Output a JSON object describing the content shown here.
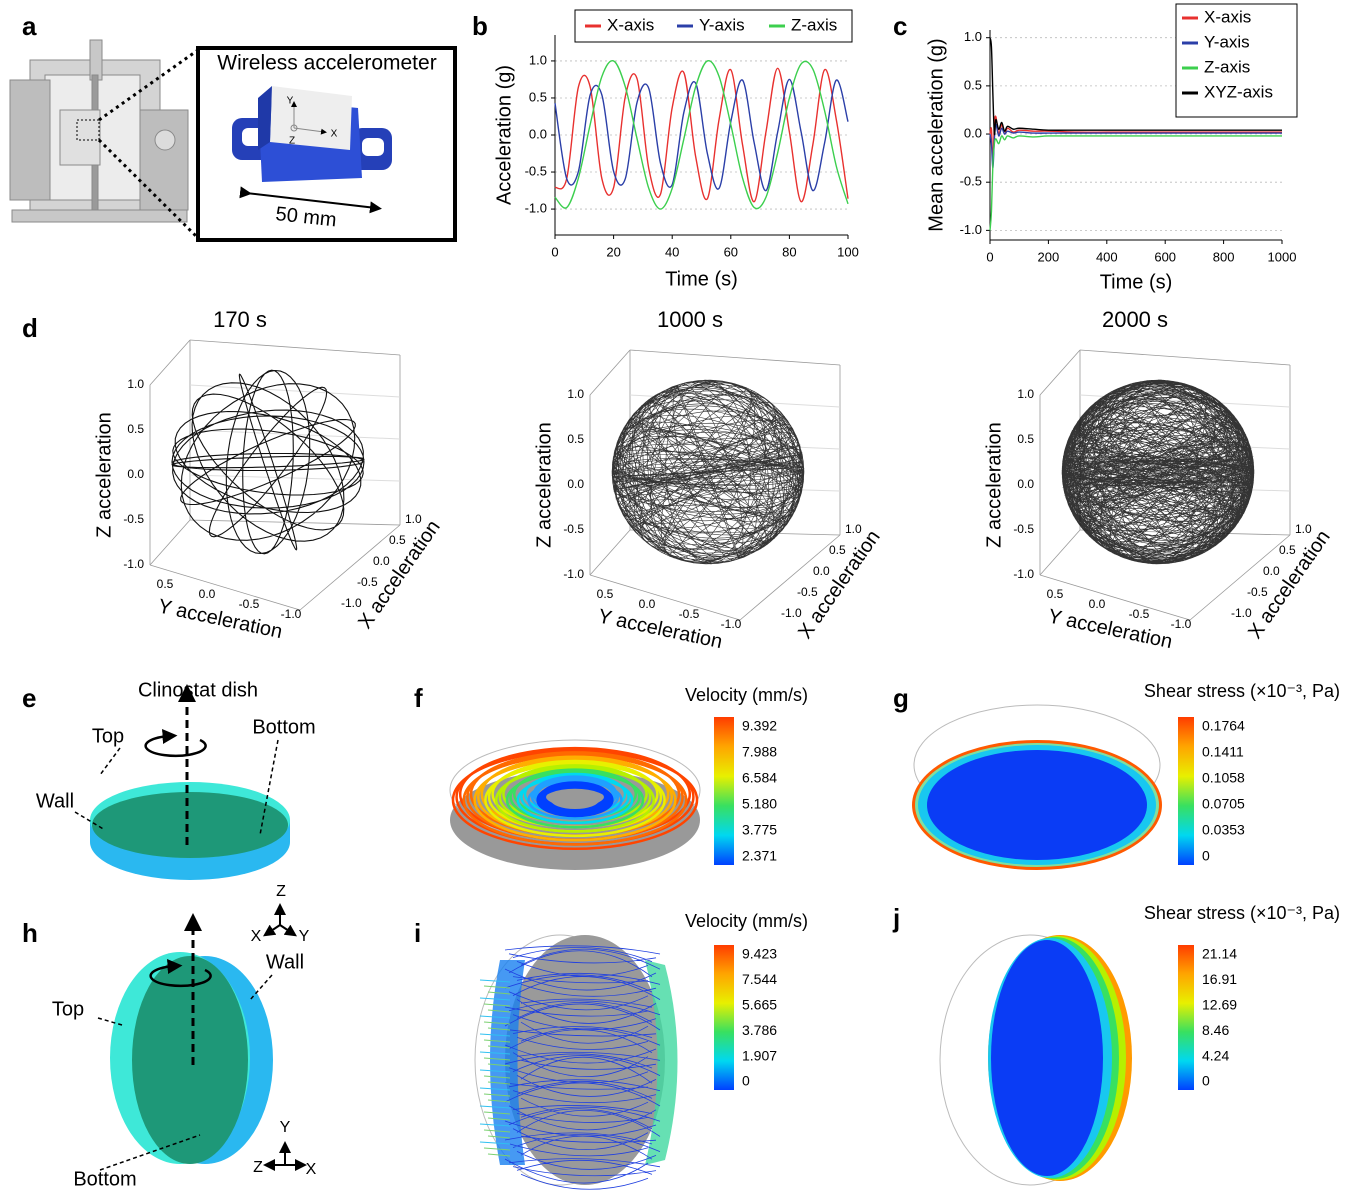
{
  "panels": {
    "a": {
      "label": "a",
      "title": "Wireless accelerometer",
      "scale": "50 mm",
      "axis_y": "Y",
      "axis_x": "X",
      "axis_z": "Z"
    },
    "b": {
      "label": "b"
    },
    "c": {
      "label": "c"
    },
    "d": {
      "label": "d",
      "plots": [
        {
          "title": "170 s"
        },
        {
          "title": "1000 s"
        },
        {
          "title": "2000 s"
        }
      ],
      "z_label": "Z acceleration",
      "y_label": "Y acceleration",
      "x_label": "X acceleration",
      "z_ticks": [
        "1.0",
        "0.5",
        "0.0",
        "-0.5",
        "-1.0"
      ],
      "y_ticks": [
        "0.5",
        "0.0",
        "-0.5",
        "-1.0"
      ],
      "x_ticks": [
        "1.0",
        "0.5",
        "0.0",
        "-0.5",
        "-1.0"
      ]
    },
    "e": {
      "label": "e",
      "title": "Clinostat dish",
      "top": "Top",
      "bottom": "Bottom",
      "wall": "Wall"
    },
    "f": {
      "label": "f",
      "title": "Velocity (mm/s)",
      "ticks": [
        "9.392",
        "7.988",
        "6.584",
        "5.180",
        "3.775",
        "2.371"
      ]
    },
    "g": {
      "label": "g",
      "title": "Shear stress (×10⁻³, Pa)",
      "ticks": [
        "0.1764",
        "0.1411",
        "0.1058",
        "0.0705",
        "0.0353",
        "0"
      ]
    },
    "h": {
      "label": "h",
      "top": "Top",
      "bottom": "Bottom",
      "wall": "Wall",
      "axes_upper": [
        "Z",
        "X",
        "Y"
      ],
      "axes_lower": [
        "Y",
        "Z",
        "X"
      ]
    },
    "i": {
      "label": "i",
      "title": "Velocity (mm/s)",
      "ticks": [
        "9.423",
        "7.544",
        "5.665",
        "3.786",
        "1.907",
        "0"
      ]
    },
    "j": {
      "label": "j",
      "title": "Shear stress (×10⁻³, Pa)",
      "ticks": [
        "21.14",
        "16.91",
        "12.69",
        "8.46",
        "4.24",
        "0"
      ]
    }
  },
  "chart_data": [
    {
      "type": "line",
      "y_label": "Acceleration (g)",
      "x_label": "Time (s)",
      "legend": "top",
      "grid": true,
      "x": [
        0,
        4,
        8,
        12,
        16,
        20,
        24,
        28,
        32,
        36,
        40,
        44,
        48,
        52,
        56,
        60,
        64,
        68,
        72,
        76,
        80,
        84,
        88,
        92,
        96,
        100
      ],
      "series": [
        {
          "name": "X-axis",
          "color": "#e8312f",
          "values": [
            -0.71,
            -0.59,
            0.65,
            0.65,
            -0.59,
            -0.71,
            0.52,
            0.76,
            -0.45,
            -0.8,
            0.37,
            0.84,
            -0.29,
            -0.86,
            0.21,
            0.88,
            -0.13,
            -0.9,
            0.04,
            0.9,
            0.04,
            -0.9,
            -0.13,
            0.88,
            0.21,
            -0.86
          ]
        },
        {
          "name": "Y-axis",
          "color": "#2b3fa8",
          "values": [
            0.43,
            -0.59,
            -0.49,
            0.54,
            0.54,
            -0.49,
            -0.59,
            0.44,
            0.63,
            -0.38,
            -0.67,
            0.31,
            0.7,
            -0.25,
            -0.72,
            0.18,
            0.74,
            -0.11,
            -0.75,
            0.04,
            0.75,
            0.04,
            -0.75,
            -0.11,
            0.74,
            0.18
          ]
        },
        {
          "name": "Z-axis",
          "color": "#3ccf4e",
          "values": [
            -0.84,
            -0.98,
            -0.58,
            0.14,
            0.79,
            1.0,
            0.65,
            -0.05,
            -0.72,
            -1.0,
            -0.72,
            -0.05,
            0.65,
            1.0,
            0.79,
            0.14,
            -0.58,
            -0.98,
            -0.84,
            -0.24,
            0.5,
            0.96,
            0.89,
            0.33,
            -0.42,
            -0.93
          ]
        }
      ],
      "xlim": [
        0,
        100
      ],
      "ylim": [
        -1.35,
        1.35
      ],
      "xticks": [
        0,
        20,
        40,
        60,
        80,
        100
      ],
      "yticks": [
        {
          "value": -1,
          "label": "-1.0"
        },
        {
          "value": -0.5,
          "label": "-0.5"
        },
        {
          "value": 0,
          "label": "0.0"
        },
        {
          "value": 0.5,
          "label": "0.5"
        },
        {
          "value": 1,
          "label": "1.0"
        }
      ]
    },
    {
      "type": "line",
      "y_label": "Mean acceleration (g)",
      "x_label": "Time (s)",
      "legend": "upper right",
      "grid": true,
      "x": [
        0,
        5,
        10,
        15,
        20,
        30,
        40,
        50,
        60,
        80,
        100,
        150,
        200,
        300,
        400,
        500,
        600,
        700,
        800,
        900,
        1000
      ],
      "series": [
        {
          "name": "X-axis",
          "color": "#e8312f",
          "values": [
            0,
            0.05,
            -0.3,
            0.1,
            0.18,
            0,
            0.1,
            0,
            0.06,
            0.02,
            0.04,
            0.03,
            0.03,
            0.02,
            0.02,
            0.02,
            0.02,
            0.02,
            0.02,
            0.02,
            0.02
          ]
        },
        {
          "name": "Y-axis",
          "color": "#2b3fa8",
          "values": [
            0,
            -0.1,
            -0.35,
            -0.05,
            0.1,
            -0.02,
            0.06,
            0,
            0.03,
            0.01,
            0.02,
            0.01,
            0.01,
            0.01,
            0.01,
            0.01,
            0.01,
            0.01,
            0.01,
            0.01,
            0.01
          ]
        },
        {
          "name": "Z-axis",
          "color": "#3ccf4e",
          "values": [
            -1,
            -0.8,
            -0.3,
            -0.1,
            -0.05,
            -0.1,
            -0.02,
            -0.06,
            -0.02,
            -0.04,
            -0.02,
            -0.03,
            -0.02,
            -0.02,
            -0.02,
            -0.02,
            -0.02,
            -0.02,
            -0.02,
            -0.02,
            -0.02
          ]
        },
        {
          "name": "XYZ-axis",
          "color": "#000000",
          "values": [
            1,
            0.9,
            0.4,
            0,
            0.15,
            0.05,
            0.12,
            0.03,
            0.08,
            0.05,
            0.06,
            0.05,
            0.04,
            0.04,
            0.04,
            0.04,
            0.04,
            0.04,
            0.04,
            0.04,
            0.04
          ]
        }
      ],
      "xlim": [
        0,
        1000
      ],
      "ylim": [
        -1.1,
        1.08
      ],
      "xticks": [
        0,
        200,
        400,
        600,
        800,
        1000
      ],
      "yticks": [
        {
          "value": -1,
          "label": "-1.0"
        },
        {
          "value": -0.5,
          "label": "-0.5"
        },
        {
          "value": 0,
          "label": "0.0"
        },
        {
          "value": 0.5,
          "label": "0.5"
        },
        {
          "value": 1,
          "label": "1.0"
        }
      ]
    }
  ]
}
